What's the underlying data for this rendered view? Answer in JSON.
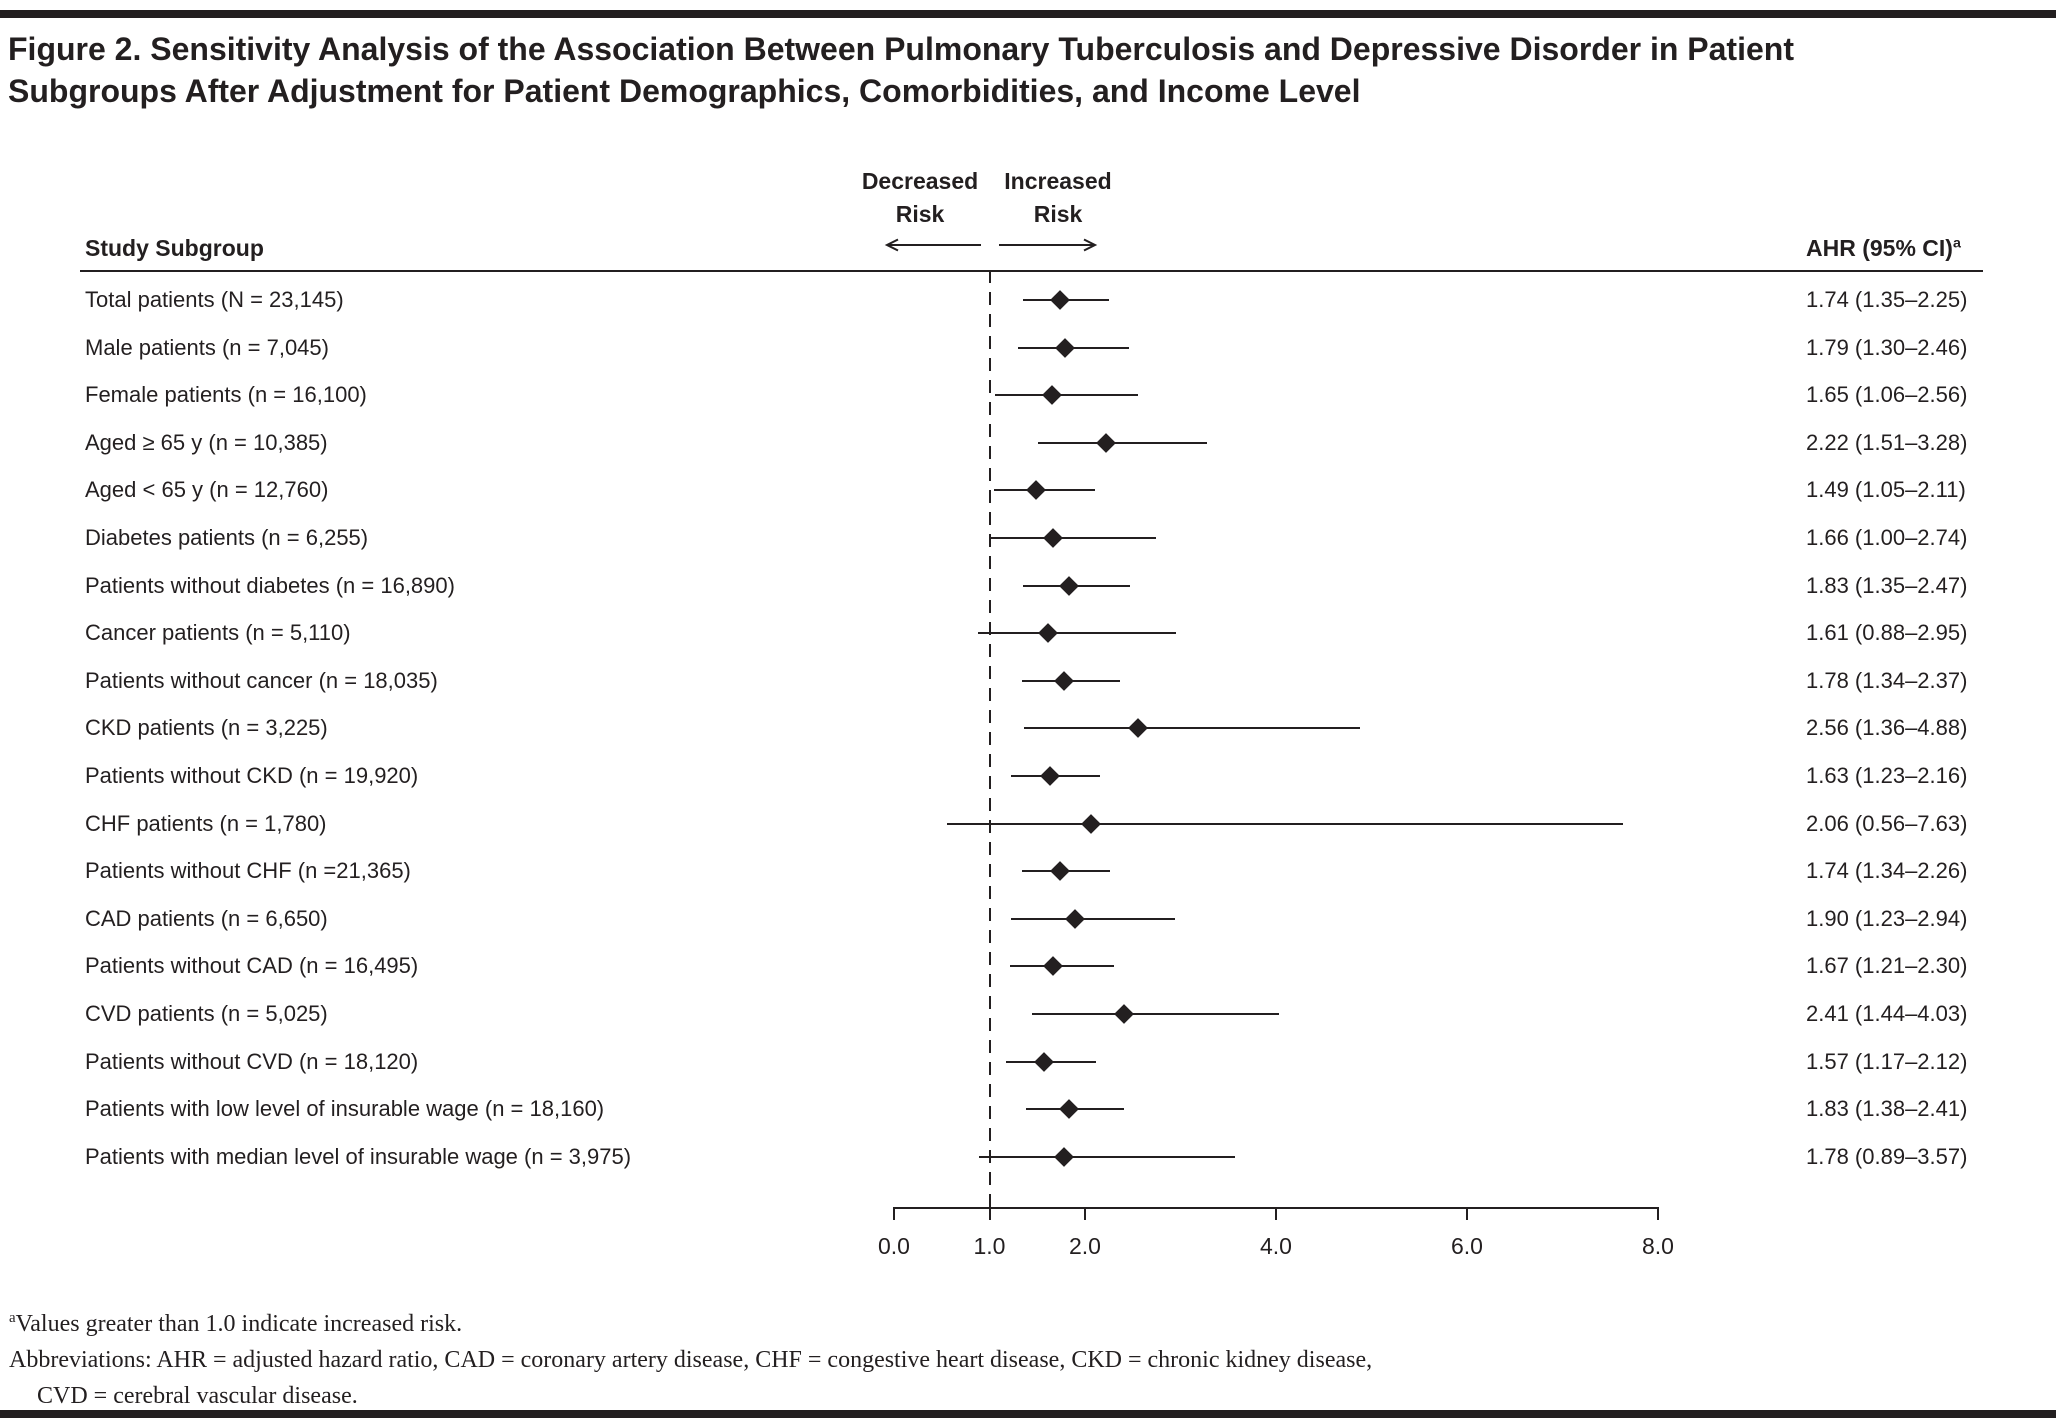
{
  "page": {
    "title_lines": [
      "Figure 2. Sensitivity Analysis of the Association Between Pulmonary Tuberculosis and Depressive Disorder in Patient",
      "Subgroups After Adjustment for Patient Demographics, Comorbidities, and Income Level"
    ]
  },
  "chart_data": {
    "type": "forest",
    "title": "Sensitivity Analysis of the Association Between Pulmonary Tuberculosis and Depressive Disorder in Patient Subgroups After Adjustment for Patient Demographics, Comorbidities, and Income Level",
    "column_headers": {
      "subgroup": "Study Subgroup",
      "ahr": "AHR (95% CI)",
      "ahr_superscript": "a"
    },
    "direction_labels": {
      "decreased_line1": "Decreased",
      "decreased_line2": "Risk",
      "increased_line1": "Increased",
      "increased_line2": "Risk"
    },
    "xaxis": {
      "min": 0,
      "max": 8,
      "tick_values": [
        0,
        1,
        2,
        4,
        6,
        8
      ],
      "tick_labels": [
        "0.0",
        "1.0",
        "2.0",
        "4.0",
        "6.0",
        "8.0"
      ],
      "reference_line": 1.0
    },
    "marker_color": "#231f20",
    "rows": [
      {
        "label": "Total patients (N = 23,145)",
        "ahr": 1.74,
        "ci_low": 1.35,
        "ci_high": 2.25,
        "ahr_text": "1.74 (1.35–2.25)"
      },
      {
        "label": "Male patients (n = 7,045)",
        "ahr": 1.79,
        "ci_low": 1.3,
        "ci_high": 2.46,
        "ahr_text": "1.79 (1.30–2.46)"
      },
      {
        "label": "Female patients (n = 16,100)",
        "ahr": 1.65,
        "ci_low": 1.06,
        "ci_high": 2.56,
        "ahr_text": "1.65 (1.06–2.56)"
      },
      {
        "label": "Aged ≥ 65 y (n = 10,385)",
        "ahr": 2.22,
        "ci_low": 1.51,
        "ci_high": 3.28,
        "ahr_text": "2.22 (1.51–3.28)"
      },
      {
        "label": "Aged < 65 y (n = 12,760)",
        "ahr": 1.49,
        "ci_low": 1.05,
        "ci_high": 2.11,
        "ahr_text": "1.49 (1.05–2.11)"
      },
      {
        "label": "Diabetes patients (n = 6,255)",
        "ahr": 1.66,
        "ci_low": 1.0,
        "ci_high": 2.74,
        "ahr_text": "1.66 (1.00–2.74)"
      },
      {
        "label": "Patients without diabetes (n = 16,890)",
        "ahr": 1.83,
        "ci_low": 1.35,
        "ci_high": 2.47,
        "ahr_text": "1.83 (1.35–2.47)"
      },
      {
        "label": "Cancer patients (n = 5,110)",
        "ahr": 1.61,
        "ci_low": 0.88,
        "ci_high": 2.95,
        "ahr_text": "1.61 (0.88–2.95)"
      },
      {
        "label": "Patients without cancer (n = 18,035)",
        "ahr": 1.78,
        "ci_low": 1.34,
        "ci_high": 2.37,
        "ahr_text": "1.78 (1.34–2.37)"
      },
      {
        "label": "CKD patients (n = 3,225)",
        "ahr": 2.56,
        "ci_low": 1.36,
        "ci_high": 4.88,
        "ahr_text": "2.56 (1.36–4.88)"
      },
      {
        "label": "Patients without CKD (n = 19,920)",
        "ahr": 1.63,
        "ci_low": 1.23,
        "ci_high": 2.16,
        "ahr_text": "1.63 (1.23–2.16)"
      },
      {
        "label": "CHF patients (n = 1,780)",
        "ahr": 2.06,
        "ci_low": 0.56,
        "ci_high": 7.63,
        "ahr_text": "2.06 (0.56–7.63)"
      },
      {
        "label": "Patients without CHF (n =21,365)",
        "ahr": 1.74,
        "ci_low": 1.34,
        "ci_high": 2.26,
        "ahr_text": "1.74 (1.34–2.26)"
      },
      {
        "label": "CAD patients (n = 6,650)",
        "ahr": 1.9,
        "ci_low": 1.23,
        "ci_high": 2.94,
        "ahr_text": "1.90 (1.23–2.94)"
      },
      {
        "label": "Patients without CAD (n = 16,495)",
        "ahr": 1.67,
        "ci_low": 1.21,
        "ci_high": 2.3,
        "ahr_text": "1.67 (1.21–2.30)"
      },
      {
        "label": "CVD patients (n = 5,025)",
        "ahr": 2.41,
        "ci_low": 1.44,
        "ci_high": 4.03,
        "ahr_text": "2.41 (1.44–4.03)"
      },
      {
        "label": "Patients without CVD (n = 18,120)",
        "ahr": 1.57,
        "ci_low": 1.17,
        "ci_high": 2.12,
        "ahr_text": "1.57 (1.17–2.12)"
      },
      {
        "label": "Patients with low level of insurable wage (n = 18,160)",
        "ahr": 1.83,
        "ci_low": 1.38,
        "ci_high": 2.41,
        "ahr_text": "1.83 (1.38–2.41)"
      },
      {
        "label": "Patients with median level of insurable wage (n = 3,975)",
        "ahr": 1.78,
        "ci_low": 0.89,
        "ci_high": 3.57,
        "ahr_text": "1.78 (0.89–3.57)"
      }
    ],
    "footnotes": {
      "note_sup": "a",
      "note_text": "Values greater than 1.0 indicate increased risk.",
      "abbreviations_line1": "Abbreviations: AHR = adjusted hazard ratio, CAD = coronary artery disease, CHF = congestive heart disease, CKD = chronic kidney disease,",
      "abbreviations_line2": "CVD = cerebral vascular disease."
    }
  }
}
